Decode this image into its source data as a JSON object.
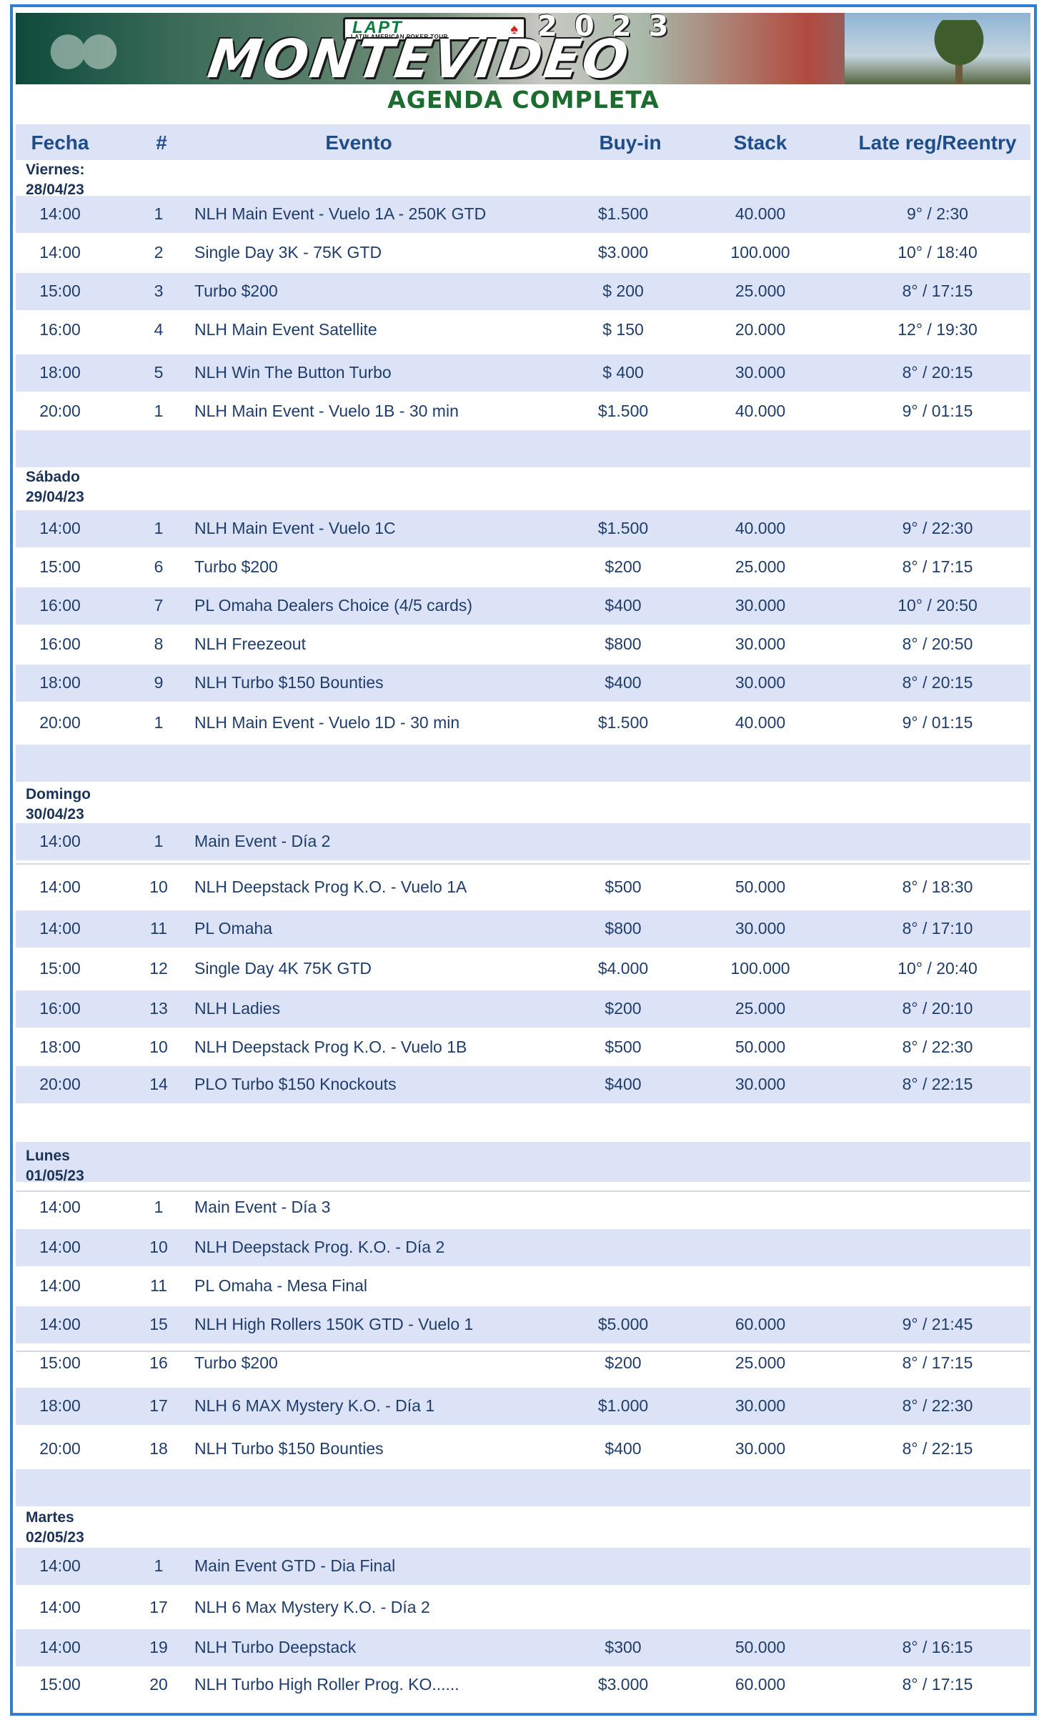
{
  "banner": {
    "lapt": "LAPT",
    "lapt_sub": "LATIN AMERICAN POKER TOUR",
    "year": "2023",
    "city": "MONTEVIDEO"
  },
  "title": "AGENDA COMPLETA",
  "columns": [
    "Fecha",
    "#",
    "Evento",
    "Buy-in",
    "Stack",
    "Late reg/Reentry"
  ],
  "days": [
    {
      "label": "Viernes:",
      "date": "28/04/23",
      "rows": [
        {
          "time": "14:00",
          "num": "1",
          "event": "NLH Main Event - Vuelo 1A - 250K GTD",
          "buyin": "$1.500",
          "stack": "40.000",
          "late": "9° / 2:30"
        },
        {
          "time": "14:00",
          "num": "2",
          "event": "Single Day 3K - 75K GTD",
          "buyin": "$3.000",
          "stack": "100.000",
          "late": "10° / 18:40"
        },
        {
          "time": "15:00",
          "num": "3",
          "event": "Turbo $200",
          "buyin": "$ 200",
          "stack": "25.000",
          "late": "8° / 17:15"
        },
        {
          "time": "16:00",
          "num": "4",
          "event": "NLH Main Event Satellite",
          "buyin": "$ 150",
          "stack": "20.000",
          "late": "12° / 19:30"
        },
        {
          "time": "18:00",
          "num": "5",
          "event": "NLH Win The Button Turbo",
          "buyin": "$ 400",
          "stack": "30.000",
          "late": "8° / 20:15"
        },
        {
          "time": "20:00",
          "num": "1",
          "event": "NLH Main Event - Vuelo 1B - 30 min",
          "buyin": "$1.500",
          "stack": "40.000",
          "late": "9° / 01:15"
        }
      ]
    },
    {
      "label": "Sábado",
      "date": "29/04/23",
      "rows": [
        {
          "time": "14:00",
          "num": "1",
          "event": "NLH Main Event - Vuelo 1C",
          "buyin": "$1.500",
          "stack": "40.000",
          "late": "9° / 22:30"
        },
        {
          "time": "15:00",
          "num": "6",
          "event": "Turbo $200",
          "buyin": "$200",
          "stack": "25.000",
          "late": "8° / 17:15"
        },
        {
          "time": "16:00",
          "num": "7",
          "event": "PL Omaha Dealers Choice (4/5 cards)",
          "buyin": "$400",
          "stack": "30.000",
          "late": "10° / 20:50"
        },
        {
          "time": "16:00",
          "num": "8",
          "event": "NLH Freezeout",
          "buyin": "$800",
          "stack": "30.000",
          "late": "8° / 20:50"
        },
        {
          "time": "18:00",
          "num": "9",
          "event": "NLH Turbo $150 Bounties",
          "buyin": "$400",
          "stack": "30.000",
          "late": "8° / 20:15"
        },
        {
          "time": "20:00",
          "num": "1",
          "event": "NLH Main Event - Vuelo 1D - 30 min",
          "buyin": "$1.500",
          "stack": "40.000",
          "late": "9° / 01:15"
        }
      ]
    },
    {
      "label": "Domingo",
      "date": "30/04/23",
      "rows": [
        {
          "time": "14:00",
          "num": "1",
          "event": "Main Event - Día 2",
          "buyin": "",
          "stack": "",
          "late": ""
        },
        {
          "time": "14:00",
          "num": "10",
          "event": "NLH Deepstack Prog K.O. - Vuelo 1A",
          "buyin": "$500",
          "stack": "50.000",
          "late": "8° / 18:30"
        },
        {
          "time": "14:00",
          "num": "11",
          "event": "PL Omaha",
          "buyin": "$800",
          "stack": "30.000",
          "late": "8° / 17:10"
        },
        {
          "time": "15:00",
          "num": "12",
          "event": "Single Day 4K 75K GTD",
          "buyin": "$4.000",
          "stack": "100.000",
          "late": "10° / 20:40"
        },
        {
          "time": "16:00",
          "num": "13",
          "event": "NLH Ladies",
          "buyin": "$200",
          "stack": "25.000",
          "late": "8° / 20:10"
        },
        {
          "time": "18:00",
          "num": "10",
          "event": "NLH Deepstack Prog K.O. - Vuelo 1B",
          "buyin": "$500",
          "stack": "50.000",
          "late": "8° / 22:30"
        },
        {
          "time": "20:00",
          "num": "14",
          "event": "PLO Turbo $150 Knockouts",
          "buyin": "$400",
          "stack": "30.000",
          "late": "8° / 22:15"
        }
      ]
    },
    {
      "label": "Lunes",
      "date": "01/05/23",
      "rows": [
        {
          "time": "14:00",
          "num": "1",
          "event": "Main Event - Día 3",
          "buyin": "",
          "stack": "",
          "late": ""
        },
        {
          "time": "14:00",
          "num": "10",
          "event": "NLH Deepstack Prog. K.O.  - Día 2",
          "buyin": "",
          "stack": "",
          "late": ""
        },
        {
          "time": "14:00",
          "num": "11",
          "event": "PL Omaha - Mesa Final",
          "buyin": "",
          "stack": "",
          "late": ""
        },
        {
          "time": "14:00",
          "num": "15",
          "event": "NLH High Rollers 150K GTD - Vuelo 1",
          "buyin": "$5.000",
          "stack": "60.000",
          "late": "9° / 21:45"
        },
        {
          "time": "15:00",
          "num": "16",
          "event": "Turbo $200",
          "buyin": "$200",
          "stack": "25.000",
          "late": "8° / 17:15"
        },
        {
          "time": "18:00",
          "num": "17",
          "event": "NLH 6 MAX Mystery K.O.  - Día 1",
          "buyin": "$1.000",
          "stack": "30.000",
          "late": "8° / 22:30"
        },
        {
          "time": "20:00",
          "num": "18",
          "event": "NLH Turbo $150  Bounties",
          "buyin": "$400",
          "stack": "30.000",
          "late": "8° / 22:15"
        }
      ]
    },
    {
      "label": "Martes",
      "date": "02/05/23",
      "rows": [
        {
          "time": "14:00",
          "num": "1",
          "event": "Main Event GTD  -  Dia Final",
          "buyin": "",
          "stack": "",
          "late": ""
        },
        {
          "time": "14:00",
          "num": "17",
          "event": "NLH 6 Max Mystery K.O. - Día 2",
          "buyin": "",
          "stack": "",
          "late": ""
        },
        {
          "time": "14:00",
          "num": "19",
          "event": "NLH Turbo Deepstack",
          "buyin": "$300",
          "stack": "50.000",
          "late": "8° / 16:15"
        },
        {
          "time": "15:00",
          "num": "20",
          "event": "NLH Turbo High Roller Prog.  KO......",
          "buyin": "$3.000",
          "stack": "60.000",
          "late": "8° / 17:15"
        }
      ]
    }
  ]
}
